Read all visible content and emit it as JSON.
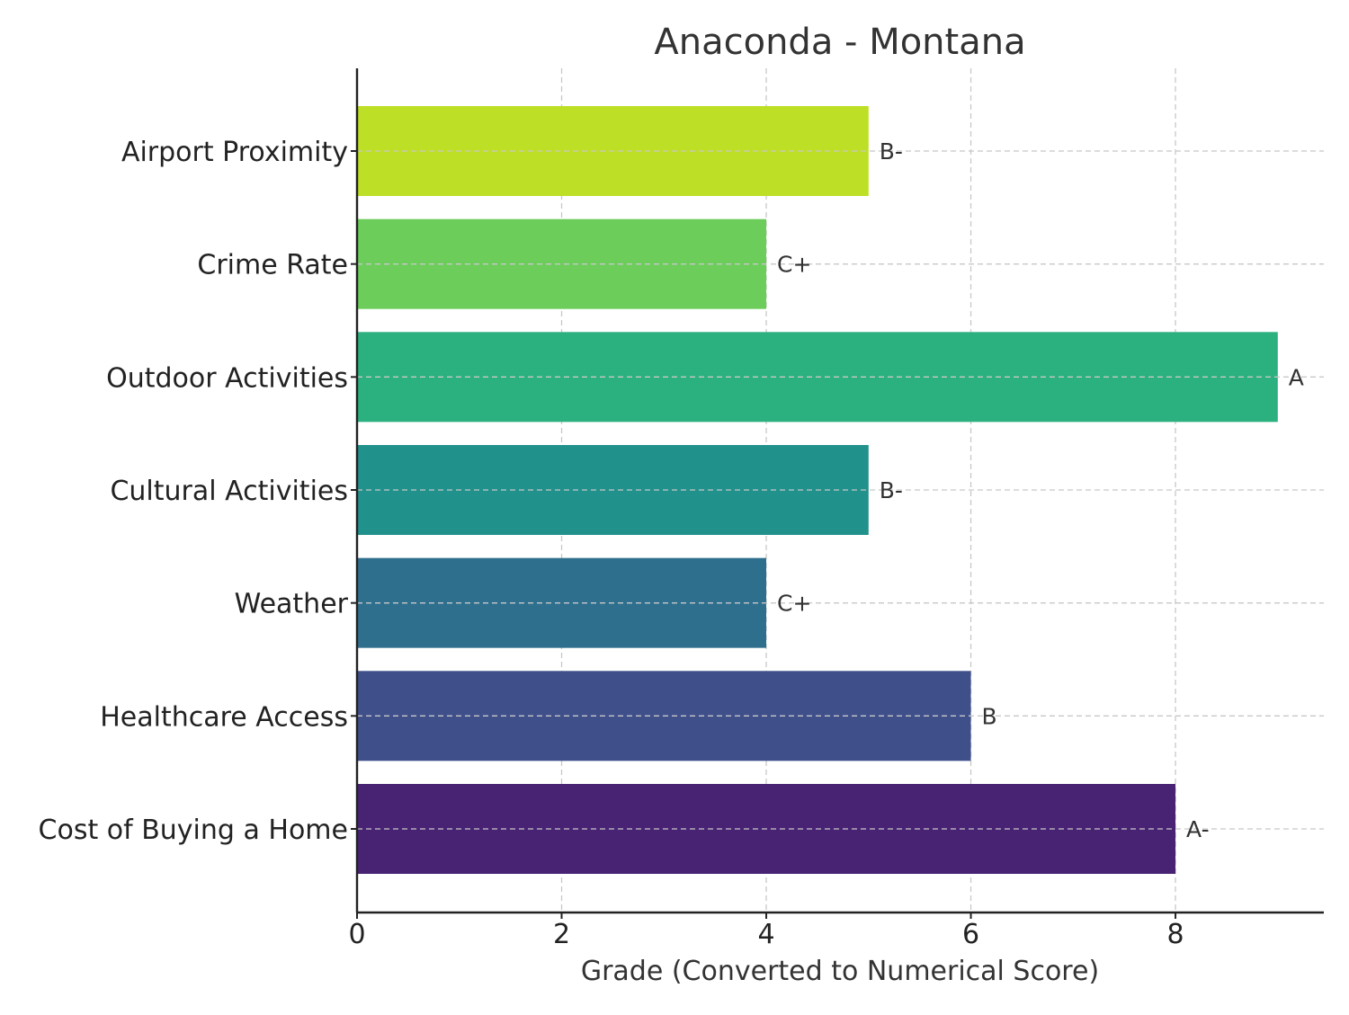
{
  "chart_data": {
    "type": "bar",
    "orientation": "horizontal",
    "title": "Anaconda - Montana",
    "xlabel": "Grade (Converted to Numerical Score)",
    "ylabel": "",
    "xlim": [
      0,
      9.45
    ],
    "xticks": [
      0,
      2,
      4,
      6,
      8
    ],
    "grid": true,
    "categories": [
      "Cost of Buying a Home",
      "Healthcare Access",
      "Weather",
      "Cultural Activities",
      "Outdoor Activities",
      "Crime Rate",
      "Airport Proximity"
    ],
    "values": [
      8,
      6,
      4,
      5,
      9,
      4,
      5
    ],
    "data_labels": [
      "A-",
      "B",
      "C+",
      "B-",
      "A",
      "C+",
      "B-"
    ],
    "colors": [
      "#482374",
      "#3e4f8a",
      "#2e6f8e",
      "#21918c",
      "#2bb07f",
      "#6ccd5a",
      "#bddf26"
    ]
  }
}
